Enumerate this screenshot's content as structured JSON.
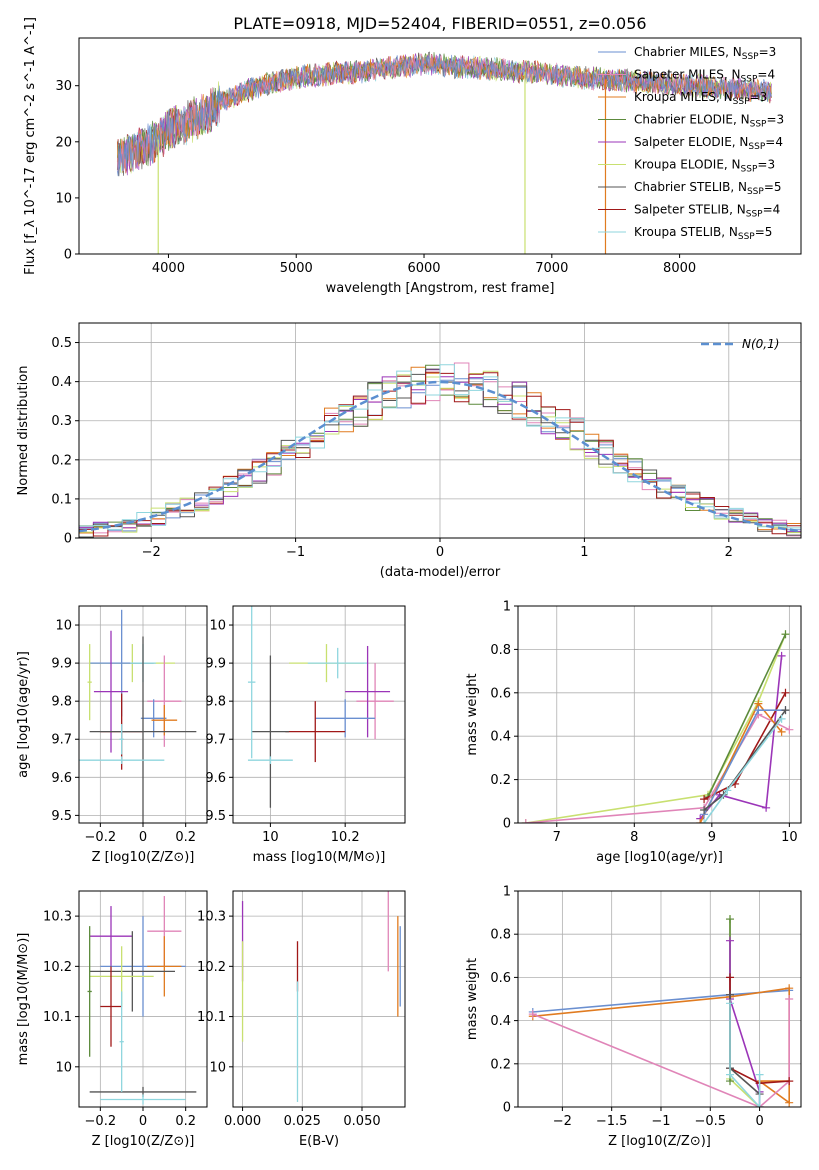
{
  "figure": {
    "title": "PLATE=0918, MJD=52404, FIBERID=0551, z=0.056"
  },
  "chart_data": [
    {
      "type": "line",
      "panel": "spectrum",
      "xlabel": "wavelength [Angstrom, rest frame]",
      "ylabel": "Flux [f_λ 10^-17 erg cm^-2 s^-1 A^-1]",
      "xlim": [
        3300,
        8950
      ],
      "ylim": [
        0,
        38.5
      ],
      "xticks": [
        4000,
        5000,
        6000,
        7000,
        8000
      ],
      "yticks": [
        0,
        10,
        20,
        30
      ],
      "grid": false,
      "legend_position": "upper-right",
      "continuum": {
        "x": [
          3600,
          3700,
          3800,
          3900,
          4000,
          4100,
          4200,
          4300,
          4400,
          4500,
          4600,
          4800,
          5000,
          5200,
          5500,
          5800,
          6000,
          6200,
          6500,
          6800,
          7000,
          7200,
          7500,
          7800,
          8100,
          8400,
          8700
        ],
        "y": [
          17,
          18,
          19,
          20,
          22,
          23,
          24,
          25,
          27,
          28,
          29,
          30.5,
          31.5,
          32,
          32.5,
          33.5,
          34,
          33.5,
          33,
          32.5,
          32,
          31.5,
          31,
          30.5,
          30,
          29.5,
          29
        ]
      },
      "series": [
        {
          "name": "Chabrier MILES, N_SSP=3",
          "color": "#6a8fd0",
          "sub": "SSP",
          "n": "3",
          "base": "Chabrier MILES, N"
        },
        {
          "name": "Salpeter MILES, N_SSP=4",
          "color": "#e085b8",
          "sub": "SSP",
          "n": "4",
          "base": "Salpeter MILES, N"
        },
        {
          "name": "Kroupa MILES, N_SSP=3",
          "color": "#e07b20",
          "sub": "SSP",
          "n": "3",
          "base": "Kroupa MILES, N"
        },
        {
          "name": "Chabrier ELODIE, N_SSP=3",
          "color": "#5c8a3c",
          "sub": "SSP",
          "n": "3",
          "base": "Chabrier ELODIE, N"
        },
        {
          "name": "Salpeter ELODIE, N_SSP=4",
          "color": "#9b35b8",
          "sub": "SSP",
          "n": "4",
          "base": "Salpeter ELODIE, N"
        },
        {
          "name": "Kroupa ELODIE, N_SSP=3",
          "color": "#c8e070",
          "sub": "SSP",
          "n": "3",
          "base": "Kroupa ELODIE, N"
        },
        {
          "name": "Chabrier STELIB, N_SSP=5",
          "color": "#555555",
          "sub": "SSP",
          "n": "5",
          "base": "Chabrier STELIB, N"
        },
        {
          "name": "Salpeter STELIB, N_SSP=4",
          "color": "#a01818",
          "sub": "SSP",
          "n": "4",
          "base": "Salpeter STELIB, N"
        },
        {
          "name": "Kroupa STELIB, N_SSP=5",
          "color": "#8fd6de",
          "sub": "SSP",
          "n": "5",
          "base": "Kroupa STELIB, N"
        }
      ],
      "dips": [
        {
          "x": 3920,
          "y": 0,
          "color": "#c8e070"
        },
        {
          "x": 6790,
          "y": 0,
          "color": "#c8e070"
        },
        {
          "x": 7420,
          "y": 0,
          "color": "#e07b20"
        }
      ]
    },
    {
      "type": "histogram",
      "panel": "residuals",
      "xlabel": "(data-model)/error",
      "ylabel": "Normed distribution",
      "xlim": [
        -2.5,
        2.5
      ],
      "ylim": [
        0,
        0.55
      ],
      "xticks": [
        -2,
        -1,
        0,
        1,
        2
      ],
      "yticks": [
        0.0,
        0.1,
        0.2,
        0.3,
        0.4,
        0.5
      ],
      "grid": true,
      "legend_position": "upper-right",
      "reference_curve": {
        "name": "N(0,1)",
        "type": "gaussian",
        "mu": 0,
        "sigma": 1,
        "color": "#5b8fd0"
      },
      "bin_width": 0.1,
      "bin_start": -2.5,
      "reference_values": [
        0.018,
        0.022,
        0.028,
        0.035,
        0.044,
        0.054,
        0.066,
        0.079,
        0.094,
        0.111,
        0.13,
        0.15,
        0.171,
        0.194,
        0.217,
        0.242,
        0.266,
        0.29,
        0.312,
        0.333,
        0.352,
        0.368,
        0.381,
        0.391,
        0.397,
        0.399,
        0.397,
        0.391,
        0.381,
        0.368,
        0.352,
        0.333,
        0.312,
        0.29,
        0.266,
        0.242,
        0.217,
        0.194,
        0.171,
        0.15,
        0.13,
        0.111,
        0.094,
        0.079,
        0.066,
        0.054,
        0.044,
        0.035,
        0.028,
        0.022
      ]
    },
    {
      "type": "scatter",
      "panel": "age-vs-Z",
      "xlabel": "Z [log10(Z/Z⊙)]",
      "ylabel": "age  [log10(age/yr)]",
      "xlim": [
        -0.3,
        0.3
      ],
      "ylim": [
        9.48,
        10.05
      ],
      "xticks": [
        -0.2,
        0.0,
        0.2
      ],
      "yticks": [
        9.5,
        9.6,
        9.7,
        9.8,
        9.9,
        10.0
      ],
      "grid": true,
      "points": [
        {
          "x": -0.05,
          "y": 9.9,
          "xerr": 0.2,
          "yerr": 0.05,
          "color": "#c8e070"
        },
        {
          "x": -0.1,
          "y": 9.9,
          "xerr": 0.15,
          "yerr": 0.14,
          "color": "#6a8fd0"
        },
        {
          "x": 0.0,
          "y": 9.9,
          "xerr": 0.06,
          "yerr": 0.05,
          "color": "#8fd6de"
        },
        {
          "x": 0.1,
          "y": 9.8,
          "xerr": 0.08,
          "yerr": 0.12,
          "color": "#e085b8"
        },
        {
          "x": -0.15,
          "y": 9.825,
          "xerr": 0.08,
          "yerr": 0.16,
          "color": "#9b35b8"
        },
        {
          "x": 0.05,
          "y": 9.755,
          "xerr": 0.06,
          "yerr": 0.05,
          "color": "#6a8fd0"
        },
        {
          "x": 0.1,
          "y": 9.75,
          "xerr": 0.06,
          "yerr": 0.04,
          "color": "#e07b20"
        },
        {
          "x": -0.1,
          "y": 9.72,
          "xerr": 0.1,
          "yerr": 0.1,
          "color": "#a01818"
        },
        {
          "x": 0.0,
          "y": 9.72,
          "xerr": 0.25,
          "yerr": 0.25,
          "color": "#555555"
        },
        {
          "x": -0.25,
          "y": 9.85,
          "xerr": 0.01,
          "yerr": 0.1,
          "color": "#c8e070"
        },
        {
          "x": -0.1,
          "y": 9.645,
          "xerr": 0.2,
          "yerr": 0.01,
          "color": "#8fd6de"
        },
        {
          "x": -0.1,
          "y": 9.7,
          "xerr": 0.01,
          "yerr": 0.04,
          "color": "#8fd6de"
        }
      ]
    },
    {
      "type": "scatter",
      "panel": "age-vs-mass",
      "xlabel": "mass [log10(M/M⊙)]",
      "ylabel": "",
      "xlim": [
        9.9,
        10.36
      ],
      "ylim": [
        9.48,
        10.05
      ],
      "xticks": [
        10.0,
        10.2
      ],
      "yticks": [
        9.5,
        9.6,
        9.7,
        9.8,
        9.9,
        10.0
      ],
      "grid": true,
      "points": [
        {
          "x": 10.15,
          "y": 9.9,
          "xerr": 0.1,
          "yerr": 0.05,
          "color": "#c8e070"
        },
        {
          "x": 10.18,
          "y": 9.9,
          "xerr": 0.08,
          "yerr": 0.04,
          "color": "#8fd6de"
        },
        {
          "x": 10.28,
          "y": 9.8,
          "xerr": 0.05,
          "yerr": 0.1,
          "color": "#e085b8"
        },
        {
          "x": 10.26,
          "y": 9.825,
          "xerr": 0.06,
          "yerr": 0.12,
          "color": "#9b35b8"
        },
        {
          "x": 10.2,
          "y": 9.755,
          "xerr": 0.08,
          "yerr": 0.05,
          "color": "#6a8fd0"
        },
        {
          "x": 10.12,
          "y": 9.72,
          "xerr": 0.08,
          "yerr": 0.08,
          "color": "#a01818"
        },
        {
          "x": 10.0,
          "y": 9.72,
          "xerr": 0.05,
          "yerr": 0.2,
          "color": "#555555"
        },
        {
          "x": 10.0,
          "y": 9.645,
          "xerr": 0.06,
          "yerr": 0.01,
          "color": "#8fd6de"
        },
        {
          "x": 9.95,
          "y": 9.85,
          "xerr": 0.01,
          "yerr": 0.2,
          "color": "#8fd6de"
        }
      ]
    },
    {
      "type": "line",
      "panel": "weight-vs-age",
      "xlabel": "age  [log10(age/yr)]",
      "ylabel": "mass weight",
      "xlim": [
        6.5,
        10.15
      ],
      "ylim": [
        0,
        1.0
      ],
      "xticks": [
        7,
        8,
        9,
        10
      ],
      "yticks": [
        0.0,
        0.2,
        0.4,
        0.6,
        0.8,
        1.0
      ],
      "grid": true,
      "series": [
        {
          "color": "#c8e070",
          "x": [
            6.6,
            8.95,
            9.6,
            9.95
          ],
          "y": [
            0.0,
            0.13,
            0.56,
            0.87
          ]
        },
        {
          "color": "#5c8a3c",
          "x": [
            8.95,
            9.95
          ],
          "y": [
            0.12,
            0.87
          ]
        },
        {
          "color": "#9b35b8",
          "x": [
            8.85,
            9.1,
            9.7,
            9.9
          ],
          "y": [
            0.02,
            0.13,
            0.07,
            0.77
          ]
        },
        {
          "color": "#a01818",
          "x": [
            8.9,
            9.3,
            9.95
          ],
          "y": [
            0.11,
            0.18,
            0.6
          ]
        },
        {
          "color": "#e085b8",
          "x": [
            6.6,
            8.9,
            9.6,
            10.0
          ],
          "y": [
            0.0,
            0.07,
            0.5,
            0.43
          ]
        },
        {
          "color": "#e07b20",
          "x": [
            8.85,
            9.6,
            9.9
          ],
          "y": [
            0.0,
            0.55,
            0.42
          ]
        },
        {
          "color": "#6a8fd0",
          "x": [
            8.9,
            9.6,
            9.95
          ],
          "y": [
            0.04,
            0.52,
            0.52
          ]
        },
        {
          "color": "#555555",
          "x": [
            8.9,
            9.15,
            9.95
          ],
          "y": [
            0.06,
            0.13,
            0.52
          ]
        },
        {
          "color": "#8fd6de",
          "x": [
            8.9,
            9.2,
            9.9
          ],
          "y": [
            0.0,
            0.15,
            0.48
          ]
        }
      ]
    },
    {
      "type": "scatter",
      "panel": "mass-vs-Z",
      "xlabel": "Z [log10(Z/Z⊙)]",
      "ylabel": "mass [log10(M/M⊙)]",
      "xlim": [
        -0.3,
        0.3
      ],
      "ylim": [
        9.92,
        10.35
      ],
      "xticks": [
        -0.2,
        0.0,
        0.2
      ],
      "yticks": [
        10.0,
        10.1,
        10.2,
        10.3
      ],
      "grid": true,
      "points": [
        {
          "x": 0.1,
          "y": 10.27,
          "xerr": 0.08,
          "yerr": 0.07,
          "color": "#e085b8"
        },
        {
          "x": -0.15,
          "y": 10.26,
          "xerr": 0.1,
          "yerr": 0.06,
          "color": "#9b35b8"
        },
        {
          "x": 0.0,
          "y": 10.2,
          "xerr": 0.2,
          "yerr": 0.1,
          "color": "#6a8fd0"
        },
        {
          "x": 0.1,
          "y": 10.2,
          "xerr": 0.08,
          "yerr": 0.06,
          "color": "#e07b20"
        },
        {
          "x": -0.05,
          "y": 10.19,
          "xerr": 0.2,
          "yerr": 0.08,
          "color": "#555555"
        },
        {
          "x": -0.1,
          "y": 10.18,
          "xerr": 0.15,
          "yerr": 0.06,
          "color": "#c8e070"
        },
        {
          "x": -0.15,
          "y": 10.12,
          "xerr": 0.05,
          "yerr": 0.08,
          "color": "#a01818"
        },
        {
          "x": 0.0,
          "y": 9.95,
          "xerr": 0.25,
          "yerr": 0.01,
          "color": "#555555"
        },
        {
          "x": 0.0,
          "y": 9.935,
          "xerr": 0.2,
          "yerr": 0.01,
          "color": "#8fd6de"
        },
        {
          "x": -0.25,
          "y": 10.15,
          "xerr": 0.01,
          "yerr": 0.13,
          "color": "#5c8a3c"
        },
        {
          "x": -0.1,
          "y": 10.05,
          "xerr": 0.01,
          "yerr": 0.1,
          "color": "#8fd6de"
        }
      ]
    },
    {
      "type": "scatter",
      "panel": "mass-vs-EBV",
      "xlabel": "E(B-V)",
      "ylabel": "",
      "xlim": [
        -0.004,
        0.068
      ],
      "ylim": [
        9.92,
        10.35
      ],
      "xticks": [
        0.0,
        0.025,
        0.05
      ],
      "xticklabels": [
        "0.000",
        "0.025",
        "0.050"
      ],
      "yticks": [
        10.0,
        10.1,
        10.2,
        10.3
      ],
      "grid": true,
      "points": [
        {
          "x": 0.0,
          "y": 10.25,
          "yerr": 0.08,
          "color": "#9b35b8"
        },
        {
          "x": 0.0,
          "y": 10.15,
          "yerr": 0.1,
          "color": "#c8e070"
        },
        {
          "x": 0.023,
          "y": 10.2,
          "yerr": 0.05,
          "color": "#a01818"
        },
        {
          "x": 0.023,
          "y": 10.05,
          "yerr": 0.12,
          "color": "#8fd6de"
        },
        {
          "x": 0.061,
          "y": 10.27,
          "yerr": 0.08,
          "color": "#e085b8"
        },
        {
          "x": 0.065,
          "y": 10.2,
          "yerr": 0.1,
          "color": "#e07b20"
        },
        {
          "x": 0.066,
          "y": 10.2,
          "yerr": 0.08,
          "color": "#6a8fd0"
        }
      ]
    },
    {
      "type": "line",
      "panel": "weight-vs-Z",
      "xlabel": "Z [log10(Z/Z⊙)]",
      "ylabel": "mass weight",
      "xlim": [
        -2.45,
        0.42
      ],
      "ylim": [
        0,
        1.0
      ],
      "xticks": [
        -2.0,
        -1.5,
        -1.0,
        -0.5,
        0.0
      ],
      "yticks": [
        0.0,
        0.2,
        0.4,
        0.6,
        0.8,
        1.0
      ],
      "grid": true,
      "series": [
        {
          "color": "#6a8fd0",
          "x": [
            -2.3,
            -0.3,
            0.3
          ],
          "y": [
            0.44,
            0.52,
            0.54
          ]
        },
        {
          "color": "#e07b20",
          "x": [
            -2.3,
            -0.3,
            0.3,
            0.3,
            0.0,
            0.3
          ],
          "y": [
            0.42,
            0.51,
            0.55,
            0.02,
            0.12,
            0.12
          ]
        },
        {
          "color": "#e085b8",
          "x": [
            -2.3,
            0.0,
            0.3,
            0.3
          ],
          "y": [
            0.43,
            0.0,
            0.12,
            0.5
          ]
        },
        {
          "color": "#c8e070",
          "x": [
            -0.3,
            -0.3,
            0.0
          ],
          "y": [
            0.87,
            0.13,
            0.0
          ]
        },
        {
          "color": "#5c8a3c",
          "x": [
            -0.3,
            -0.3
          ],
          "y": [
            0.87,
            0.12
          ]
        },
        {
          "color": "#9b35b8",
          "x": [
            -0.3,
            -0.3,
            0.0,
            0.0
          ],
          "y": [
            0.77,
            0.5,
            0.07,
            0.0
          ]
        },
        {
          "color": "#a01818",
          "x": [
            -0.3,
            -0.3,
            0.0,
            0.3
          ],
          "y": [
            0.6,
            0.18,
            0.11,
            0.12
          ]
        },
        {
          "color": "#555555",
          "x": [
            -0.3,
            -0.3,
            0.0
          ],
          "y": [
            0.52,
            0.18,
            0.06
          ]
        },
        {
          "color": "#8fd6de",
          "x": [
            -0.3,
            -0.3,
            0.0,
            0.0
          ],
          "y": [
            0.48,
            0.15,
            0.0,
            0.15
          ]
        }
      ]
    }
  ]
}
